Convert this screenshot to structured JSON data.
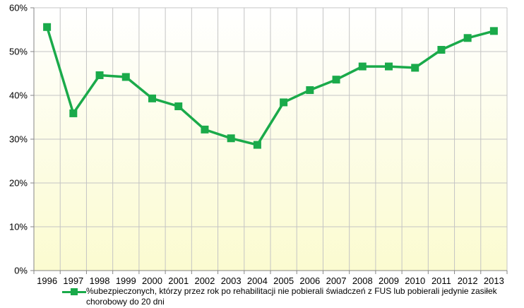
{
  "chart_data": {
    "type": "line",
    "title": "",
    "xlabel": "",
    "ylabel": "",
    "categories": [
      "1996",
      "1997",
      "1998",
      "1999",
      "2000",
      "2001",
      "2002",
      "2003",
      "2004",
      "2005",
      "2006",
      "2007",
      "2008",
      "2009",
      "2010",
      "2011",
      "2012",
      "2013"
    ],
    "series": [
      {
        "name": "%ubezpieczonych, którzy przez rok po rehabilitacji nie pobierali świadczeń z FUS lub pobierali jedynie zasiłek chorobowy do 20 dni",
        "values": [
          55.6,
          35.9,
          44.6,
          44.2,
          39.3,
          37.5,
          32.2,
          30.2,
          28.7,
          38.4,
          41.2,
          43.6,
          46.6,
          46.6,
          46.3,
          50.4,
          53.1,
          54.7
        ],
        "color": "#1aaa4a"
      }
    ],
    "ylim": [
      0,
      60
    ],
    "yticks": [
      0,
      10,
      20,
      30,
      40,
      50,
      60
    ],
    "ytick_labels": [
      "0%",
      "10%",
      "20%",
      "30%",
      "40%",
      "50%",
      "60%"
    ],
    "grid": true,
    "legend_position": "bottom",
    "plot_background": "gradient: white (top) to pale yellow (bottom)"
  },
  "colors": {
    "series_line": "#1aaa4a",
    "gridline": "#c4c4c4",
    "plot_bg_top": "#ffffff",
    "plot_bg_bottom": "#fbfbd0"
  },
  "legend": {
    "label": "%ubezpieczonych, którzy przez rok po rehabilitacji nie pobierali świadczeń z FUS lub pobierali jedynie zasiłek chorobowy do 20 dni"
  }
}
